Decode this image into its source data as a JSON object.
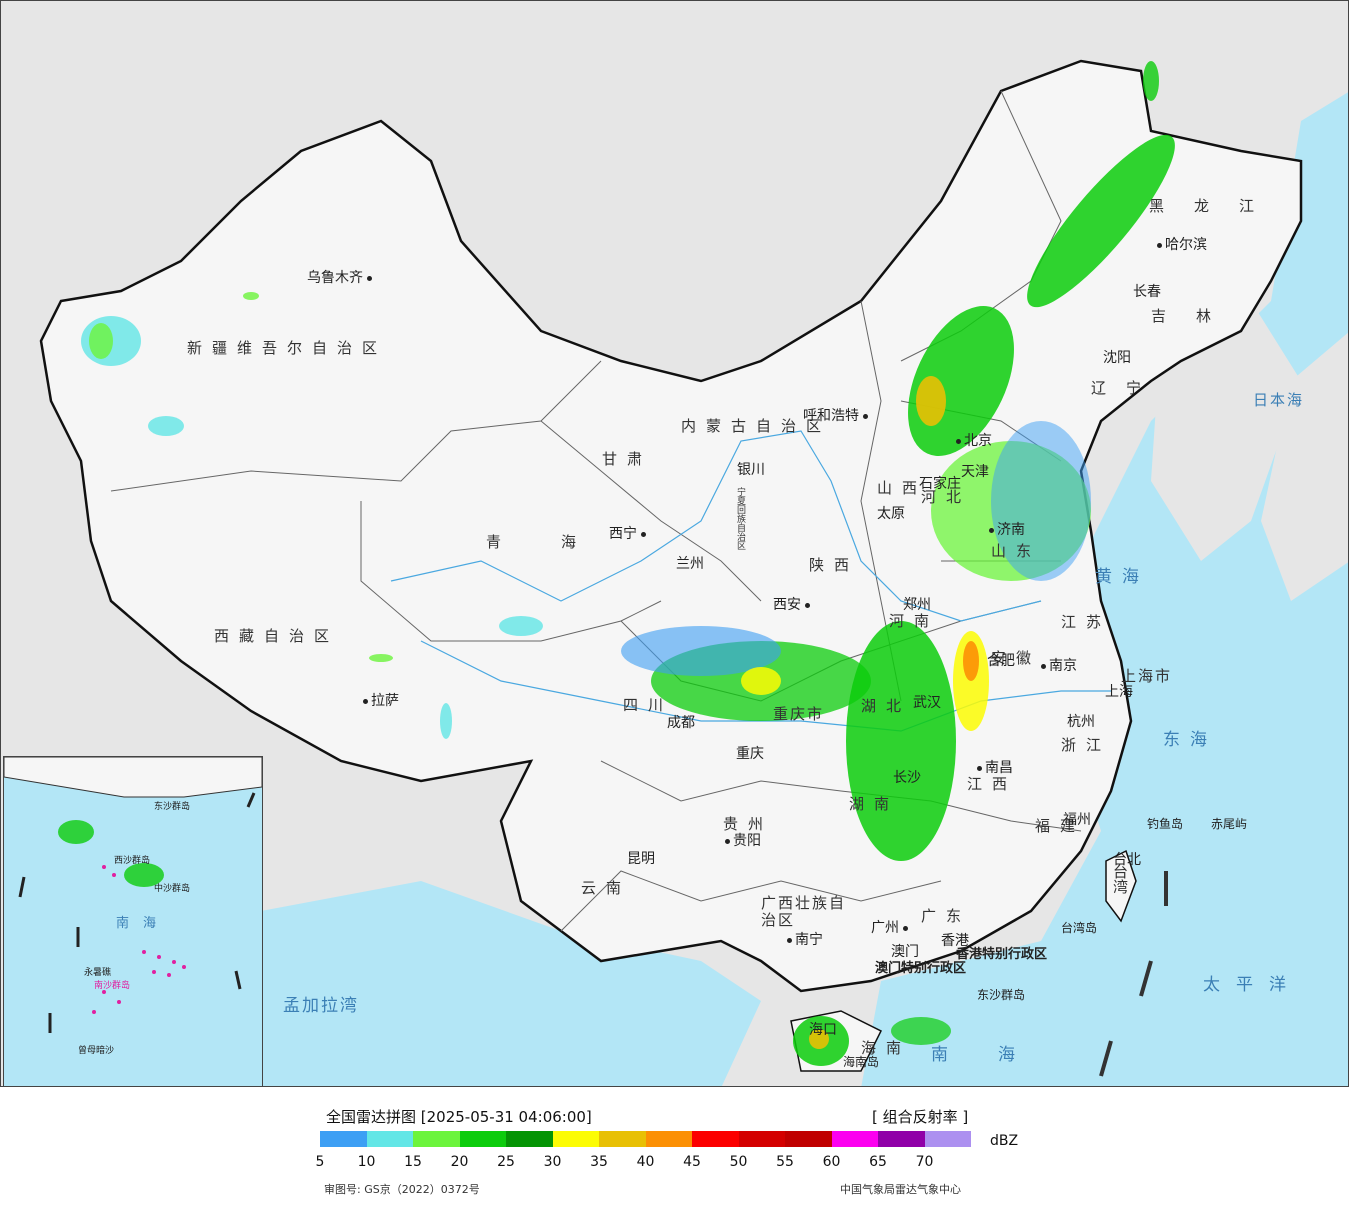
{
  "title": "全国雷达拼图 [2025-05-31 04:06:00]",
  "product": "[ 组合反射率 ]",
  "unit": "dBZ",
  "legend": {
    "colors": [
      "#3d9ff4",
      "#63e6e6",
      "#6cf43c",
      "#0ccc0c",
      "#049404",
      "#fcfc04",
      "#e8c004",
      "#fc9004",
      "#fc0000",
      "#d40000",
      "#c00000",
      "#fc00f0",
      "#9000a8",
      "#ac90f0"
    ],
    "ticks": [
      "5",
      "10",
      "15",
      "20",
      "25",
      "30",
      "35",
      "40",
      "45",
      "50",
      "55",
      "60",
      "65",
      "70"
    ]
  },
  "approval": "审图号: GS京（2022）0372号",
  "credit": "中国气象局雷达气象中心",
  "provinces": [
    "新疆维吾尔自治区",
    "西藏自治区",
    "青海",
    "甘肃",
    "内蒙古自治区",
    "黑龙江",
    "吉林",
    "辽宁",
    "河北",
    "山西",
    "山东",
    "河南",
    "江苏",
    "安徽",
    "湖北",
    "湖南",
    "江西",
    "浙江",
    "福建",
    "广东",
    "广西壮族自治区",
    "贵州",
    "云南",
    "四川",
    "重庆市",
    "陕西",
    "宁夏回族自治区",
    "上海市",
    "台湾",
    "海南"
  ],
  "cities": [
    "乌鲁木齐",
    "拉萨",
    "西宁",
    "兰州",
    "银川",
    "呼和浩特",
    "北京",
    "天津",
    "石家庄",
    "太原",
    "济南",
    "郑州",
    "西安",
    "成都",
    "重庆",
    "武汉",
    "合肥",
    "南京",
    "上海",
    "杭州",
    "南昌",
    "长沙",
    "贵阳",
    "昆明",
    "南宁",
    "广州",
    "香港",
    "澳门",
    "福州",
    "台北",
    "海口",
    "哈尔滨",
    "长春",
    "沈阳"
  ],
  "seas": [
    "日本海",
    "黄海",
    "东海",
    "南海",
    "太平洋",
    "孟加拉湾"
  ],
  "islands": [
    "钓鱼岛",
    "赤尾屿",
    "台湾岛",
    "东沙群岛",
    "海南岛"
  ],
  "special_regions": [
    "香港特别行政区",
    "澳门特别行政区"
  ],
  "inset_labels": [
    "南海",
    "西沙群岛",
    "南沙群岛",
    "中沙群岛",
    "永暑礁",
    "曾母暗沙",
    "东沙群岛"
  ]
}
